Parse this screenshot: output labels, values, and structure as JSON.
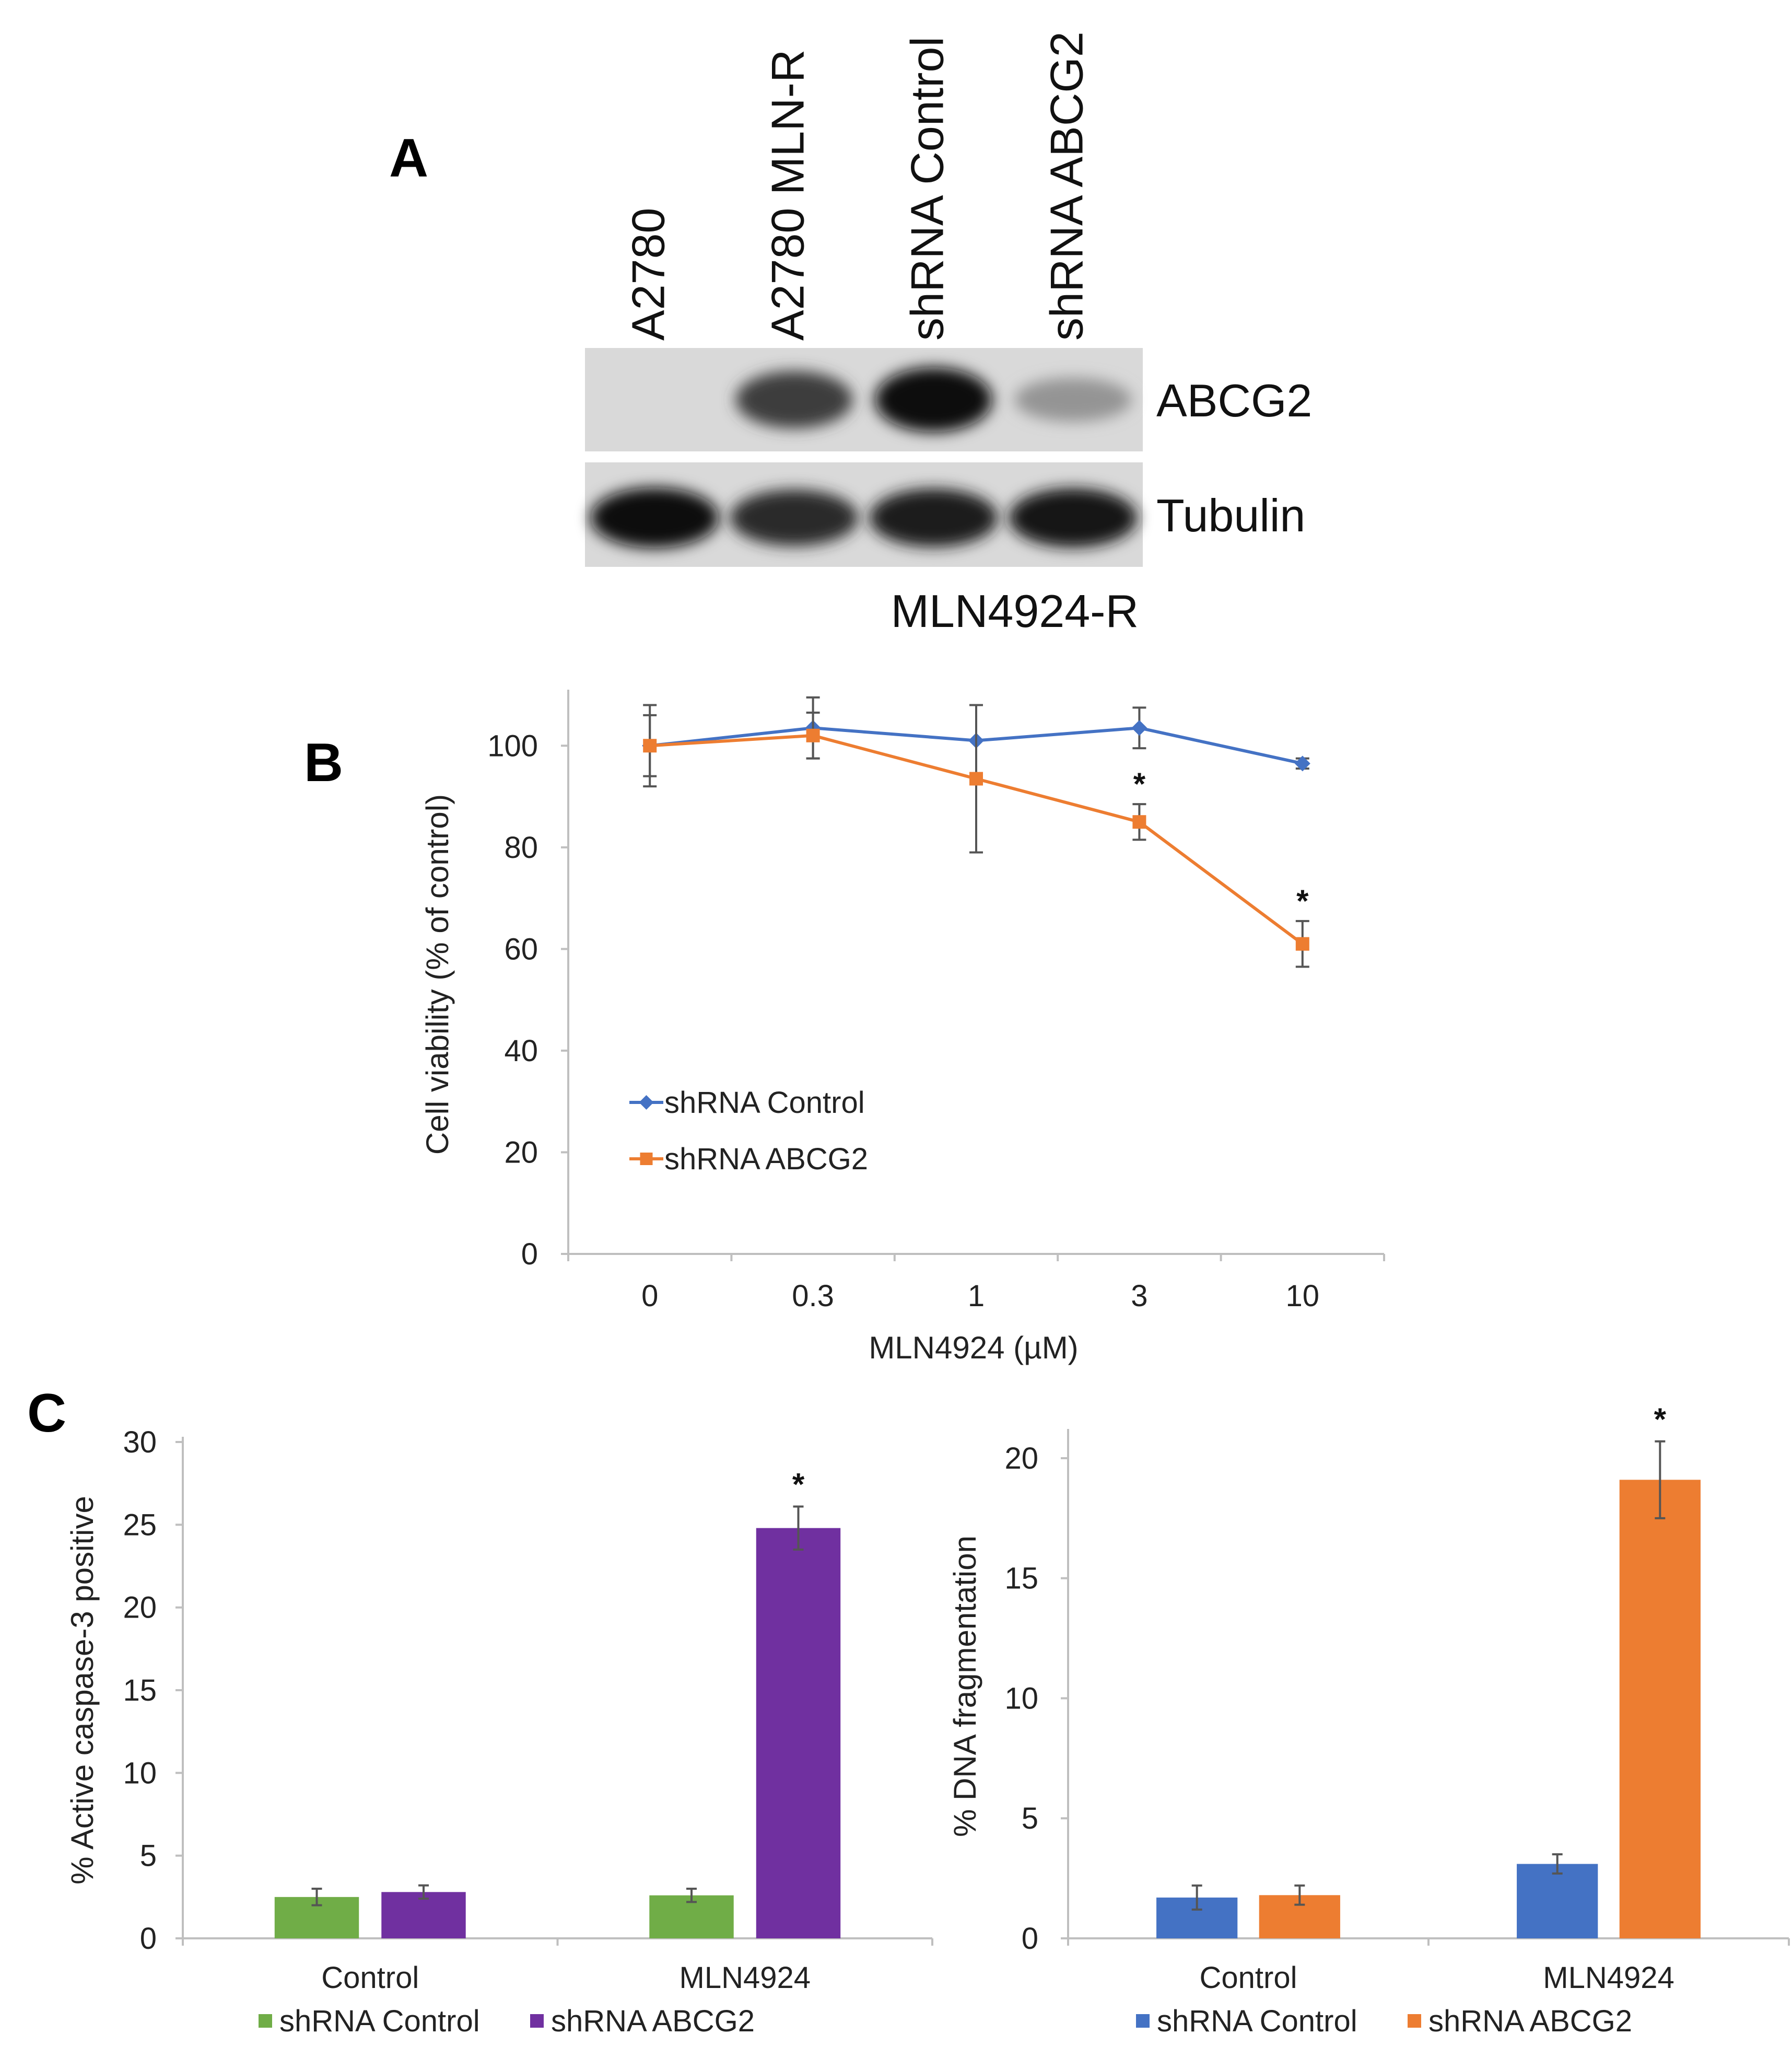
{
  "panel_letters": [
    "A",
    "B",
    "C"
  ],
  "blot": {
    "lanes": [
      "A2780",
      "A2780 MLN-R",
      "shRNA Control",
      "shRNA ABCG2"
    ],
    "bands": [
      {
        "label": "ABCG2",
        "intensities": [
          0.0,
          0.75,
          1.0,
          0.28
        ]
      },
      {
        "label": "Tubulin",
        "intensities": [
          1.0,
          0.85,
          0.92,
          0.95
        ]
      }
    ],
    "group_label": "MLN4924-R"
  },
  "colors": {
    "blue": "#4472c4",
    "orange": "#ed7d31",
    "green": "#70ad47",
    "purple": "#7030a0",
    "axis": "#bfbfbf"
  },
  "chart_data": [
    {
      "type": "line",
      "panel": "B",
      "categories": [
        "0",
        "0.3",
        "1",
        "3",
        "10"
      ],
      "xlabel": "MLN4924 (µM)",
      "ylabel": "Cell viability (% of control)",
      "ylim": [
        0,
        110
      ],
      "yticks": [
        0,
        20,
        40,
        60,
        80,
        100
      ],
      "legend_position": "lower-left",
      "series": [
        {
          "name": "shRNA Control",
          "color": "#4472c4",
          "marker": "diamond",
          "values": [
            100,
            103.5,
            101,
            103.5,
            96.5
          ],
          "errors": [
            8,
            6,
            7,
            4,
            1
          ]
        },
        {
          "name": "shRNA ABCG2",
          "color": "#ed7d31",
          "marker": "square",
          "values": [
            100,
            102,
            93.5,
            85,
            61
          ],
          "errors": [
            6,
            4.5,
            14.5,
            3.5,
            4.5
          ]
        }
      ],
      "significance": [
        {
          "category": "3",
          "series": "shRNA ABCG2",
          "label": "*"
        },
        {
          "category": "10",
          "series": "shRNA ABCG2",
          "label": "*"
        }
      ]
    },
    {
      "type": "bar",
      "panel": "C-left",
      "categories": [
        "Control",
        "MLN4924"
      ],
      "ylabel": "% Active caspase-3 positive",
      "ylim": [
        0,
        30
      ],
      "yticks": [
        0,
        5,
        10,
        15,
        20,
        25,
        30
      ],
      "legend_position": "bottom",
      "series": [
        {
          "name": "shRNA Control",
          "color": "#70ad47",
          "values": [
            2.5,
            2.6
          ],
          "errors": [
            0.5,
            0.4
          ]
        },
        {
          "name": "shRNA ABCG2",
          "color": "#7030a0",
          "values": [
            2.8,
            24.8
          ],
          "errors": [
            0.4,
            1.3
          ]
        }
      ],
      "significance": [
        {
          "category": "MLN4924",
          "series": "shRNA ABCG2",
          "label": "*"
        }
      ]
    },
    {
      "type": "bar",
      "panel": "C-right",
      "categories": [
        "Control",
        "MLN4924"
      ],
      "ylabel": "% DNA fragmentation",
      "ylim": [
        0,
        21
      ],
      "yticks": [
        0,
        5,
        10,
        15,
        20
      ],
      "legend_position": "bottom",
      "series": [
        {
          "name": "shRNA Control",
          "color": "#4472c4",
          "values": [
            1.7,
            3.1
          ],
          "errors": [
            0.5,
            0.4
          ]
        },
        {
          "name": "shRNA ABCG2",
          "color": "#ed7d31",
          "values": [
            1.8,
            19.1
          ],
          "errors": [
            0.4,
            1.6
          ]
        }
      ],
      "significance": [
        {
          "category": "MLN4924",
          "series": "shRNA ABCG2",
          "label": "*"
        }
      ]
    }
  ]
}
